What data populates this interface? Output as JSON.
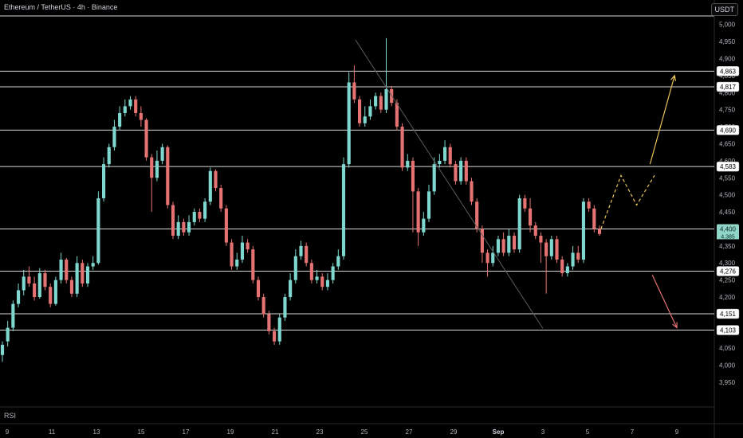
{
  "header": {
    "title": "Ethereum / TetherUS · 4h · Binance"
  },
  "currency_button": "USDT",
  "rsi_label": "RSI",
  "colors": {
    "up": "#7fd8d0",
    "down": "#e57373",
    "level_line": "#d9d9d9",
    "background": "#000000",
    "trend_line": "#5a5a5a",
    "bull_arrow": "#e8c25a",
    "bear_arrow": "#e57373",
    "current_price_badge": "#8fd6c9"
  },
  "chart_data": {
    "type": "candlestick",
    "ylim": [
      3915,
      5025
    ],
    "y_ticks": [
      3950,
      4000,
      4050,
      4100,
      4150,
      4200,
      4250,
      4300,
      4350,
      4400,
      4450,
      4500,
      4550,
      4600,
      4650,
      4700,
      4750,
      4800,
      4850,
      4900,
      4950,
      5000
    ],
    "x_labels": [
      "9",
      "11",
      "13",
      "15",
      "17",
      "19",
      "21",
      "23",
      "25",
      "27",
      "29",
      "Sep",
      "3",
      "5",
      "7",
      "9"
    ],
    "horizontal_levels": [
      {
        "price": 5025,
        "label": ""
      },
      {
        "price": 4863,
        "label": "4,863"
      },
      {
        "price": 4817,
        "label": "4,817"
      },
      {
        "price": 4690,
        "label": "4,690"
      },
      {
        "price": 4583,
        "label": "4,583"
      },
      {
        "price": 4400,
        "label": "4,400"
      },
      {
        "price": 4276,
        "label": "4,276"
      },
      {
        "price": 4151,
        "label": "4,151"
      },
      {
        "price": 4103,
        "label": "4,103"
      }
    ],
    "current_price": {
      "price": 4400,
      "label": "4,400",
      "sub_label": "4,385"
    },
    "trend_line": {
      "from": {
        "x_day": 24.6,
        "price": 4955
      },
      "to": {
        "x_day": 33.0,
        "price": 4108
      }
    },
    "projection_bull": {
      "points": [
        {
          "x_day": 35.6,
          "price": 4400
        },
        {
          "x_day": 36.5,
          "price": 4557
        },
        {
          "x_day": 37.2,
          "price": 4470
        },
        {
          "x_day": 38.0,
          "price": 4557
        }
      ],
      "arrow_from": {
        "x_day": 37.8,
        "price": 4590
      },
      "arrow_to": {
        "x_day": 38.9,
        "price": 4850
      }
    },
    "projection_bear": {
      "from": {
        "x_day": 37.9,
        "price": 4265
      },
      "to": {
        "x_day": 39.0,
        "price": 4110
      }
    },
    "ohlc": [
      [
        4030,
        4060,
        4010,
        4070
      ],
      [
        4070,
        4110,
        4055,
        4130
      ],
      [
        4110,
        4180,
        4100,
        4190
      ],
      [
        4180,
        4220,
        4170,
        4240
      ],
      [
        4220,
        4260,
        4205,
        4280
      ],
      [
        4260,
        4240,
        4230,
        4290
      ],
      [
        4240,
        4200,
        4190,
        4260
      ],
      [
        4200,
        4270,
        4195,
        4285
      ],
      [
        4270,
        4230,
        4220,
        4280
      ],
      [
        4230,
        4180,
        4170,
        4240
      ],
      [
        4180,
        4250,
        4175,
        4260
      ],
      [
        4250,
        4310,
        4240,
        4330
      ],
      [
        4310,
        4250,
        4240,
        4315
      ],
      [
        4250,
        4210,
        4200,
        4260
      ],
      [
        4210,
        4300,
        4200,
        4320
      ],
      [
        4300,
        4240,
        4230,
        4310
      ],
      [
        4240,
        4290,
        4230,
        4300
      ],
      [
        4290,
        4300,
        4280,
        4320
      ],
      [
        4300,
        4490,
        4295,
        4510
      ],
      [
        4490,
        4590,
        4480,
        4610
      ],
      [
        4590,
        4640,
        4580,
        4650
      ],
      [
        4640,
        4700,
        4630,
        4720
      ],
      [
        4700,
        4740,
        4690,
        4760
      ],
      [
        4740,
        4760,
        4730,
        4780
      ],
      [
        4760,
        4780,
        4750,
        4790
      ],
      [
        4780,
        4740,
        4730,
        4790
      ],
      [
        4740,
        4720,
        4700,
        4760
      ],
      [
        4720,
        4610,
        4600,
        4725
      ],
      [
        4610,
        4550,
        4450,
        4620
      ],
      [
        4550,
        4600,
        4540,
        4630
      ],
      [
        4600,
        4640,
        4590,
        4650
      ],
      [
        4640,
        4470,
        4460,
        4645
      ],
      [
        4470,
        4380,
        4370,
        4480
      ],
      [
        4380,
        4420,
        4370,
        4440
      ],
      [
        4420,
        4390,
        4380,
        4430
      ],
      [
        4390,
        4420,
        4380,
        4440
      ],
      [
        4420,
        4450,
        4410,
        4460
      ],
      [
        4450,
        4430,
        4420,
        4460
      ],
      [
        4430,
        4480,
        4420,
        4490
      ],
      [
        4480,
        4570,
        4470,
        4580
      ],
      [
        4570,
        4520,
        4510,
        4575
      ],
      [
        4520,
        4460,
        4450,
        4530
      ],
      [
        4460,
        4360,
        4350,
        4470
      ],
      [
        4360,
        4290,
        4280,
        4370
      ],
      [
        4290,
        4310,
        4280,
        4330
      ],
      [
        4310,
        4360,
        4300,
        4380
      ],
      [
        4360,
        4340,
        4330,
        4370
      ],
      [
        4340,
        4250,
        4240,
        4350
      ],
      [
        4250,
        4200,
        4190,
        4260
      ],
      [
        4200,
        4150,
        4140,
        4210
      ],
      [
        4150,
        4100,
        4090,
        4160
      ],
      [
        4100,
        4070,
        4060,
        4110
      ],
      [
        4070,
        4140,
        4060,
        4150
      ],
      [
        4140,
        4200,
        4130,
        4210
      ],
      [
        4200,
        4250,
        4190,
        4270
      ],
      [
        4250,
        4320,
        4240,
        4340
      ],
      [
        4320,
        4350,
        4310,
        4365
      ],
      [
        4350,
        4300,
        4290,
        4360
      ],
      [
        4300,
        4250,
        4240,
        4310
      ],
      [
        4250,
        4260,
        4240,
        4280
      ],
      [
        4260,
        4230,
        4220,
        4270
      ],
      [
        4230,
        4250,
        4220,
        4270
      ],
      [
        4250,
        4290,
        4240,
        4300
      ],
      [
        4290,
        4320,
        4280,
        4340
      ],
      [
        4320,
        4590,
        4310,
        4610
      ],
      [
        4590,
        4830,
        4580,
        4860
      ],
      [
        4830,
        4780,
        4770,
        4880
      ],
      [
        4780,
        4710,
        4700,
        4790
      ],
      [
        4710,
        4730,
        4700,
        4760
      ],
      [
        4730,
        4760,
        4720,
        4780
      ],
      [
        4760,
        4790,
        4750,
        4800
      ],
      [
        4790,
        4750,
        4740,
        4800
      ],
      [
        4750,
        4810,
        4740,
        4960
      ],
      [
        4810,
        4770,
        4760,
        4820
      ],
      [
        4770,
        4700,
        4690,
        4780
      ],
      [
        4700,
        4580,
        4570,
        4710
      ],
      [
        4580,
        4600,
        4570,
        4620
      ],
      [
        4600,
        4510,
        4390,
        4610
      ],
      [
        4510,
        4390,
        4350,
        4520
      ],
      [
        4390,
        4430,
        4380,
        4450
      ],
      [
        4430,
        4510,
        4420,
        4530
      ],
      [
        4510,
        4590,
        4500,
        4610
      ],
      [
        4590,
        4600,
        4580,
        4620
      ],
      [
        4600,
        4640,
        4590,
        4660
      ],
      [
        4640,
        4590,
        4580,
        4650
      ],
      [
        4590,
        4540,
        4530,
        4600
      ],
      [
        4540,
        4600,
        4530,
        4610
      ],
      [
        4600,
        4540,
        4530,
        4610
      ],
      [
        4540,
        4480,
        4470,
        4550
      ],
      [
        4480,
        4400,
        4390,
        4490
      ],
      [
        4400,
        4330,
        4300,
        4410
      ],
      [
        4330,
        4300,
        4260,
        4340
      ],
      [
        4300,
        4330,
        4290,
        4350
      ],
      [
        4330,
        4370,
        4320,
        4380
      ],
      [
        4370,
        4330,
        4320,
        4390
      ],
      [
        4330,
        4380,
        4320,
        4400
      ],
      [
        4380,
        4340,
        4330,
        4390
      ],
      [
        4340,
        4490,
        4330,
        4500
      ],
      [
        4490,
        4460,
        4450,
        4500
      ],
      [
        4460,
        4410,
        4390,
        4490
      ],
      [
        4410,
        4380,
        4370,
        4420
      ],
      [
        4380,
        4360,
        4300,
        4390
      ],
      [
        4360,
        4320,
        4210,
        4370
      ],
      [
        4320,
        4370,
        4310,
        4380
      ],
      [
        4370,
        4310,
        4300,
        4380
      ],
      [
        4310,
        4270,
        4260,
        4320
      ],
      [
        4270,
        4290,
        4260,
        4300
      ],
      [
        4290,
        4330,
        4280,
        4350
      ],
      [
        4330,
        4310,
        4300,
        4350
      ],
      [
        4310,
        4480,
        4300,
        4490
      ],
      [
        4480,
        4460,
        4450,
        4490
      ],
      [
        4460,
        4400,
        4390,
        4470
      ],
      [
        4400,
        4385,
        4380,
        4410
      ]
    ]
  }
}
